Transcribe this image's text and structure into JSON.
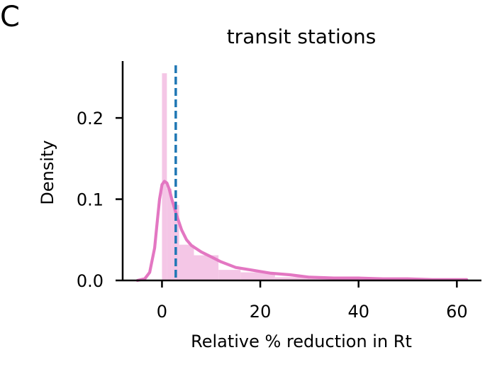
{
  "panel_label": "C",
  "chart_data": {
    "type": "histogram",
    "title": "transit stations",
    "xlabel": "Relative % reduction in Rt",
    "ylabel": "Density",
    "xlim": [
      -8,
      65
    ],
    "ylim": [
      0,
      0.27
    ],
    "xticks": [
      0,
      20,
      40,
      60
    ],
    "yticks": [
      0.0,
      0.1,
      0.2
    ],
    "xtick_labels": [
      "0",
      "20",
      "40",
      "60"
    ],
    "ytick_labels": [
      "0.0",
      "0.1",
      "0.2"
    ],
    "histogram": {
      "color": "#f4c6e6",
      "bins": [
        {
          "x0": 0,
          "x1": 1,
          "density": 0.255
        },
        {
          "x0": 1,
          "x1": 2,
          "density": 0.113
        },
        {
          "x0": 2,
          "x1": 3.5,
          "density": 0.093
        },
        {
          "x0": 3.5,
          "x1": 6.5,
          "density": 0.044
        },
        {
          "x0": 6.5,
          "x1": 11.5,
          "density": 0.031
        },
        {
          "x0": 11.5,
          "x1": 16,
          "density": 0.013
        },
        {
          "x0": 16,
          "x1": 23,
          "density": 0.01
        },
        {
          "x0": 23,
          "x1": 30,
          "density": 0.004
        },
        {
          "x0": 30,
          "x1": 40,
          "density": 0.002
        },
        {
          "x0": 40,
          "x1": 62,
          "density": 0.001
        }
      ]
    },
    "kde": {
      "color": "#e377c2",
      "x": [
        -5,
        -3.5,
        -2.5,
        -1.5,
        -1,
        -0.5,
        0,
        0.5,
        1,
        1.5,
        2,
        3,
        4,
        5,
        6,
        8,
        10,
        12,
        15,
        18,
        22,
        26,
        30,
        35,
        40,
        45,
        50,
        55,
        60,
        62
      ],
      "y": [
        0,
        0.002,
        0.01,
        0.04,
        0.07,
        0.1,
        0.118,
        0.122,
        0.12,
        0.112,
        0.1,
        0.08,
        0.062,
        0.05,
        0.043,
        0.035,
        0.029,
        0.023,
        0.016,
        0.013,
        0.009,
        0.007,
        0.004,
        0.003,
        0.003,
        0.002,
        0.002,
        0.001,
        0.001,
        0.001
      ]
    },
    "vline": {
      "x": 2.8,
      "color": "#1f77b4",
      "style": "dashed"
    }
  }
}
